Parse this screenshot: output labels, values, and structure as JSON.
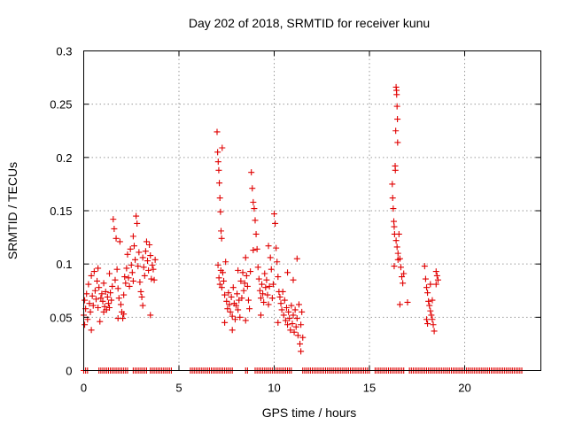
{
  "chart_data": {
    "type": "scatter",
    "title": "Day 202 of 2018, SRMTID for receiver kunu",
    "xlabel": "GPS time / hours",
    "ylabel": "SRMTID / TECUs",
    "xlim": [
      0,
      24
    ],
    "ylim": [
      0,
      0.3
    ],
    "xticks": [
      0,
      5,
      10,
      15,
      20
    ],
    "xtick_labels": [
      "0",
      "5",
      "10",
      "15",
      "20"
    ],
    "yticks": [
      0,
      0.05,
      0.1,
      0.15,
      0.2,
      0.25,
      0.3
    ],
    "ytick_labels": [
      "0",
      "0.05",
      "0.1",
      "0.15",
      "0.2",
      "0.25",
      "0.3"
    ],
    "grid": true,
    "marker": "+",
    "marker_color": "#e00000",
    "series": [
      {
        "name": "SRMTID",
        "points": [
          [
            0.0,
            0.052
          ],
          [
            0.05,
            0.066
          ],
          [
            0.1,
            0.058
          ],
          [
            0.15,
            0.072
          ],
          [
            0.2,
            0.048
          ],
          [
            0.25,
            0.081
          ],
          [
            0.3,
            0.063
          ],
          [
            0.35,
            0.055
          ],
          [
            0.4,
            0.089
          ],
          [
            0.45,
            0.07
          ],
          [
            0.5,
            0.061
          ],
          [
            0.55,
            0.093
          ],
          [
            0.6,
            0.075
          ],
          [
            0.65,
            0.067
          ],
          [
            0.7,
            0.084
          ],
          [
            0.75,
            0.059
          ],
          [
            0.8,
            0.078
          ],
          [
            0.85,
            0.046
          ],
          [
            0.9,
            0.068
          ],
          [
            0.95,
            0.072
          ],
          [
            1.0,
            0.065
          ],
          [
            1.05,
            0.082
          ],
          [
            1.1,
            0.06
          ],
          [
            1.15,
            0.074
          ],
          [
            1.2,
            0.057
          ],
          [
            1.25,
            0.069
          ],
          [
            1.3,
            0.063
          ],
          [
            1.35,
            0.091
          ],
          [
            1.4,
            0.073
          ],
          [
            1.45,
            0.066
          ],
          [
            1.5,
            0.079
          ],
          [
            1.55,
            0.142
          ],
          [
            1.6,
            0.133
          ],
          [
            1.65,
            0.085
          ],
          [
            1.7,
            0.124
          ],
          [
            1.75,
            0.095
          ],
          [
            1.8,
            0.077
          ],
          [
            1.85,
            0.068
          ],
          [
            1.9,
            0.121
          ],
          [
            1.95,
            0.062
          ],
          [
            2.0,
            0.055
          ],
          [
            2.05,
            0.049
          ],
          [
            2.1,
            0.071
          ],
          [
            2.15,
            0.088
          ],
          [
            2.2,
            0.082
          ],
          [
            2.25,
            0.096
          ],
          [
            2.3,
            0.109
          ],
          [
            2.35,
            0.087
          ],
          [
            2.4,
            0.079
          ],
          [
            2.45,
            0.114
          ],
          [
            2.5,
            0.099
          ],
          [
            2.55,
            0.092
          ],
          [
            2.6,
            0.126
          ],
          [
            2.65,
            0.117
          ],
          [
            2.7,
            0.104
          ],
          [
            2.75,
            0.145
          ],
          [
            2.8,
            0.138
          ],
          [
            2.85,
            0.098
          ],
          [
            2.9,
            0.111
          ],
          [
            2.95,
            0.083
          ],
          [
            3.0,
            0.074
          ],
          [
            3.05,
            0.069
          ],
          [
            3.1,
            0.106
          ],
          [
            3.15,
            0.097
          ],
          [
            3.2,
            0.089
          ],
          [
            3.25,
            0.112
          ],
          [
            3.3,
            0.121
          ],
          [
            3.35,
            0.103
          ],
          [
            3.4,
            0.094
          ],
          [
            3.45,
            0.118
          ],
          [
            3.5,
            0.108
          ],
          [
            3.55,
            0.086
          ],
          [
            3.6,
            0.099
          ],
          [
            3.65,
            0.095
          ],
          [
            3.7,
            0.085
          ],
          [
            3.75,
            0.104
          ],
          [
            0.05,
            0.043
          ],
          [
            0.4,
            0.038
          ],
          [
            0.75,
            0.096
          ],
          [
            1.05,
            0.055
          ],
          [
            1.35,
            0.059
          ],
          [
            1.8,
            0.049
          ],
          [
            2.1,
            0.053
          ],
          [
            2.6,
            0.084
          ],
          [
            3.1,
            0.061
          ],
          [
            3.5,
            0.052
          ],
          [
            7.0,
            0.224
          ],
          [
            7.03,
            0.205
          ],
          [
            7.06,
            0.196
          ],
          [
            7.09,
            0.188
          ],
          [
            7.12,
            0.176
          ],
          [
            7.15,
            0.162
          ],
          [
            7.18,
            0.149
          ],
          [
            7.21,
            0.131
          ],
          [
            7.24,
            0.124
          ],
          [
            7.27,
            0.209
          ],
          [
            7.05,
            0.099
          ],
          [
            7.1,
            0.087
          ],
          [
            7.15,
            0.081
          ],
          [
            7.2,
            0.094
          ],
          [
            7.25,
            0.078
          ],
          [
            7.3,
            0.092
          ],
          [
            7.35,
            0.084
          ],
          [
            7.4,
            0.071
          ],
          [
            7.45,
            0.102
          ],
          [
            7.5,
            0.065
          ],
          [
            7.55,
            0.058
          ],
          [
            7.6,
            0.073
          ],
          [
            7.65,
            0.062
          ],
          [
            7.7,
            0.055
          ],
          [
            7.75,
            0.069
          ],
          [
            7.8,
            0.051
          ],
          [
            7.85,
            0.078
          ],
          [
            7.9,
            0.063
          ],
          [
            7.95,
            0.048
          ],
          [
            8.0,
            0.061
          ],
          [
            8.05,
            0.072
          ],
          [
            8.1,
            0.057
          ],
          [
            8.15,
            0.066
          ],
          [
            8.2,
            0.05
          ],
          [
            8.25,
            0.084
          ],
          [
            8.3,
            0.068
          ],
          [
            8.35,
            0.092
          ],
          [
            8.4,
            0.075
          ],
          [
            8.45,
            0.082
          ],
          [
            8.5,
            0.106
          ],
          [
            8.55,
            0.089
          ],
          [
            8.6,
            0.079
          ],
          [
            8.65,
            0.066
          ],
          [
            8.7,
            0.058
          ],
          [
            8.75,
            0.093
          ],
          [
            8.8,
            0.186
          ],
          [
            8.85,
            0.171
          ],
          [
            8.9,
            0.158
          ],
          [
            8.95,
            0.152
          ],
          [
            9.0,
            0.141
          ],
          [
            9.05,
            0.128
          ],
          [
            9.1,
            0.114
          ],
          [
            9.15,
            0.097
          ],
          [
            9.2,
            0.086
          ],
          [
            9.25,
            0.075
          ],
          [
            9.3,
            0.068
          ],
          [
            9.35,
            0.081
          ],
          [
            9.4,
            0.072
          ],
          [
            9.45,
            0.064
          ],
          [
            9.5,
            0.091
          ],
          [
            9.55,
            0.078
          ],
          [
            9.6,
            0.085
          ],
          [
            9.65,
            0.071
          ],
          [
            9.7,
            0.062
          ],
          [
            9.75,
            0.079
          ],
          [
            9.8,
            0.106
          ],
          [
            9.85,
            0.095
          ],
          [
            9.9,
            0.068
          ],
          [
            9.95,
            0.081
          ],
          [
            10.0,
            0.147
          ],
          [
            10.05,
            0.138
          ],
          [
            10.1,
            0.115
          ],
          [
            10.15,
            0.102
          ],
          [
            10.2,
            0.088
          ],
          [
            10.25,
            0.074
          ],
          [
            10.3,
            0.069
          ],
          [
            10.35,
            0.063
          ],
          [
            10.4,
            0.057
          ],
          [
            10.45,
            0.074
          ],
          [
            10.5,
            0.052
          ],
          [
            10.55,
            0.066
          ],
          [
            10.6,
            0.047
          ],
          [
            10.65,
            0.059
          ],
          [
            10.7,
            0.043
          ],
          [
            10.75,
            0.055
          ],
          [
            10.8,
            0.049
          ],
          [
            10.85,
            0.038
          ],
          [
            10.9,
            0.061
          ],
          [
            10.95,
            0.044
          ],
          [
            11.0,
            0.052
          ],
          [
            11.05,
            0.036
          ],
          [
            11.1,
            0.057
          ],
          [
            11.15,
            0.041
          ],
          [
            11.2,
            0.049
          ],
          [
            11.25,
            0.033
          ],
          [
            11.3,
            0.062
          ],
          [
            11.35,
            0.025
          ],
          [
            11.4,
            0.043
          ],
          [
            11.45,
            0.055
          ],
          [
            11.5,
            0.031
          ],
          [
            7.4,
            0.045
          ],
          [
            7.8,
            0.038
          ],
          [
            8.1,
            0.094
          ],
          [
            8.5,
            0.047
          ],
          [
            8.9,
            0.113
          ],
          [
            9.3,
            0.052
          ],
          [
            9.7,
            0.117
          ],
          [
            10.2,
            0.045
          ],
          [
            10.7,
            0.092
          ],
          [
            11.0,
            0.085
          ],
          [
            11.2,
            0.105
          ],
          [
            11.4,
            0.018
          ],
          [
            16.2,
            0.175
          ],
          [
            16.22,
            0.162
          ],
          [
            16.25,
            0.152
          ],
          [
            16.28,
            0.14
          ],
          [
            16.3,
            0.135
          ],
          [
            16.32,
            0.128
          ],
          [
            16.35,
            0.192
          ],
          [
            16.36,
            0.188
          ],
          [
            16.38,
            0.225
          ],
          [
            16.4,
            0.266
          ],
          [
            16.42,
            0.263
          ],
          [
            16.43,
            0.259
          ],
          [
            16.45,
            0.248
          ],
          [
            16.47,
            0.236
          ],
          [
            16.48,
            0.214
          ],
          [
            16.4,
            0.122
          ],
          [
            16.45,
            0.116
          ],
          [
            16.5,
            0.11
          ],
          [
            16.55,
            0.128
          ],
          [
            16.6,
            0.105
          ],
          [
            16.65,
            0.097
          ],
          [
            16.7,
            0.088
          ],
          [
            16.75,
            0.082
          ],
          [
            16.8,
            0.091
          ],
          [
            16.6,
            0.062
          ],
          [
            17.0,
            0.064
          ],
          [
            16.3,
            0.098
          ],
          [
            16.5,
            0.104
          ],
          [
            17.9,
            0.098
          ],
          [
            17.95,
            0.086
          ],
          [
            18.0,
            0.078
          ],
          [
            18.05,
            0.073
          ],
          [
            18.1,
            0.065
          ],
          [
            18.15,
            0.061
          ],
          [
            18.2,
            0.056
          ],
          [
            18.25,
            0.052
          ],
          [
            18.3,
            0.048
          ],
          [
            18.35,
            0.043
          ],
          [
            18.4,
            0.037
          ],
          [
            18.0,
            0.048
          ],
          [
            18.05,
            0.044
          ],
          [
            18.3,
            0.066
          ],
          [
            18.2,
            0.081
          ],
          [
            18.5,
            0.093
          ],
          [
            18.55,
            0.089
          ],
          [
            18.6,
            0.085
          ],
          [
            18.5,
            0.081
          ]
        ]
      }
    ],
    "zero_segments": [
      [
        0.0,
        0.2
      ],
      [
        0.8,
        2.3
      ],
      [
        2.6,
        3.3
      ],
      [
        3.5,
        4.6
      ],
      [
        5.6,
        7.8
      ],
      [
        8.5,
        8.6
      ],
      [
        9.0,
        10.9
      ],
      [
        11.5,
        15.0
      ],
      [
        15.3,
        16.8
      ],
      [
        17.1,
        18.9
      ],
      [
        19.0,
        23.0
      ]
    ]
  }
}
